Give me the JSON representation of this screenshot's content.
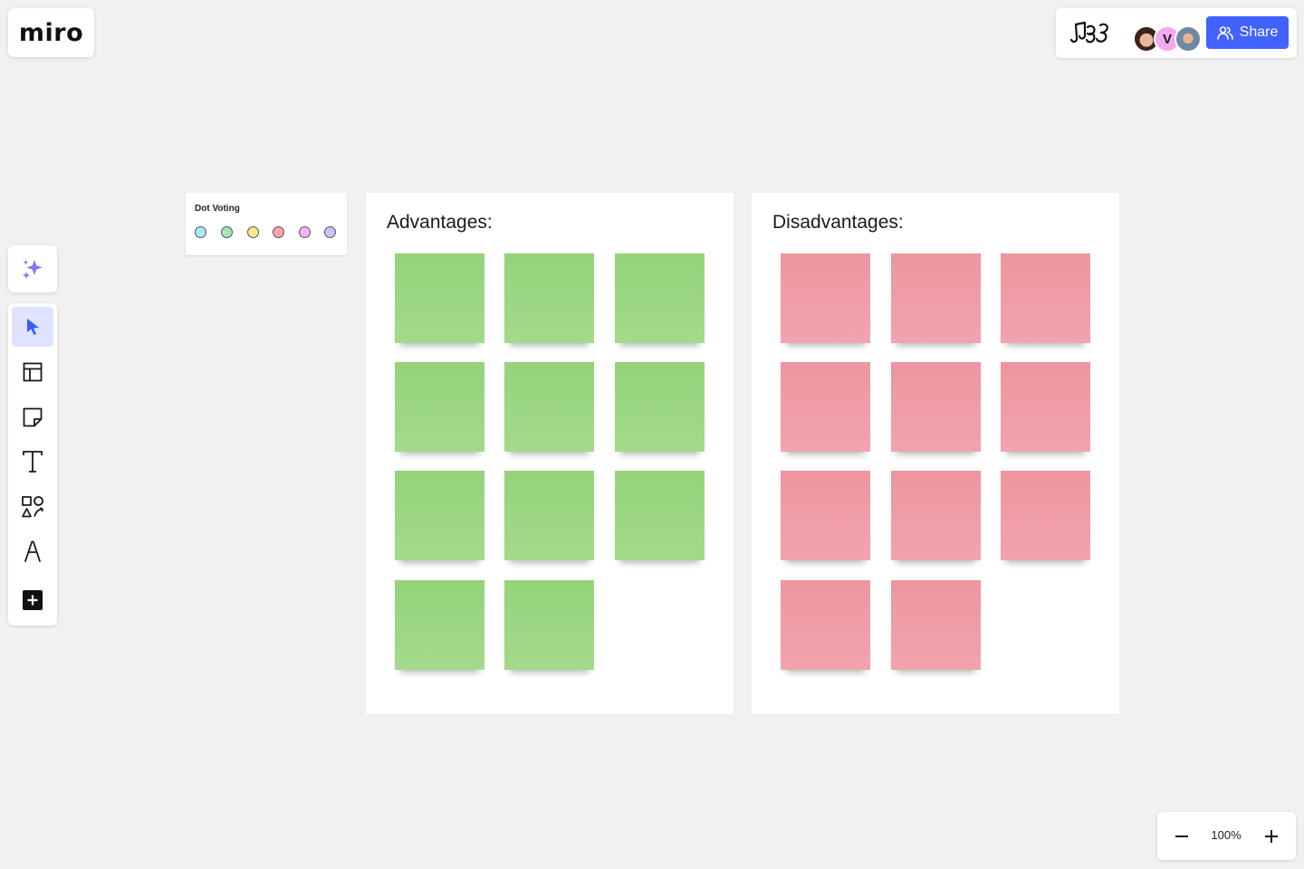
{
  "app": {
    "logo_text": "miro"
  },
  "topbar": {
    "avatars": [
      {
        "name": "user-avatar-1",
        "initial": ""
      },
      {
        "name": "user-avatar-2",
        "initial": "V"
      },
      {
        "name": "user-avatar-3",
        "initial": ""
      }
    ],
    "share_label": "Share"
  },
  "toolbar": {
    "ai_tool": "sparkle-icon",
    "tools": [
      {
        "name": "select-tool",
        "icon": "cursor-icon",
        "active": true
      },
      {
        "name": "templates-tool",
        "icon": "layout-icon",
        "active": false
      },
      {
        "name": "sticky-note-tool",
        "icon": "sticky-note-icon",
        "active": false
      },
      {
        "name": "text-tool",
        "icon": "text-icon",
        "active": false
      },
      {
        "name": "shapes-tool",
        "icon": "shapes-icon",
        "active": false
      },
      {
        "name": "pen-tool",
        "icon": "pen-icon",
        "active": false
      },
      {
        "name": "more-tools",
        "icon": "plus-square-icon",
        "active": false
      }
    ]
  },
  "dot_voting": {
    "title": "Dot Voting",
    "dot_colors": [
      "#aee8f5",
      "#a6e6b3",
      "#fde78b",
      "#f8a6a6",
      "#f4b3f2",
      "#c8c4f7"
    ]
  },
  "frames": {
    "advantages": {
      "title": "Advantages:",
      "color": "#95d37a",
      "sticky_count": 11
    },
    "disadvantages": {
      "title": "Disadvantages:",
      "color": "#ee959f",
      "sticky_count": 11
    }
  },
  "zoom": {
    "level": "100%"
  }
}
